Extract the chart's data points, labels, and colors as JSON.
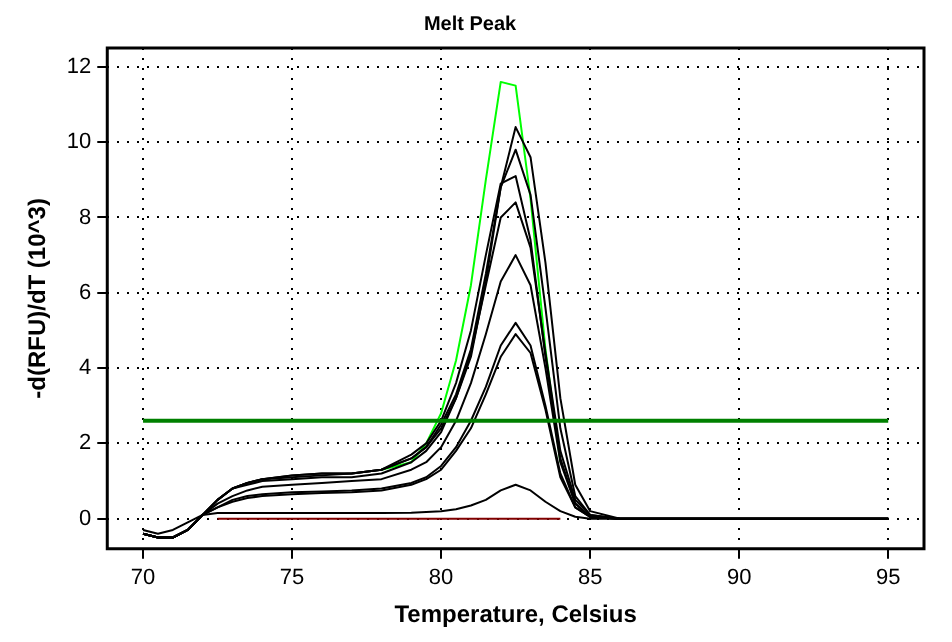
{
  "chart_data": {
    "type": "line",
    "title": "Melt Peak",
    "xlabel": "Temperature, Celsius",
    "ylabel": "-d(RFU)/dT (10^3)",
    "x": [
      70,
      70.5,
      71,
      71.5,
      72,
      72.5,
      73,
      73.5,
      74,
      75,
      76,
      77,
      78,
      79,
      79.5,
      80,
      80.5,
      81,
      81.5,
      82,
      82.5,
      83,
      83.5,
      84,
      84.5,
      85,
      86,
      90,
      95
    ],
    "xlim": [
      68.8,
      96.2
    ],
    "xticks": [
      70,
      75,
      80,
      85,
      90,
      95
    ],
    "ylim": [
      -0.8,
      12.5
    ],
    "yticks": [
      0,
      2,
      4,
      6,
      8,
      10,
      12
    ],
    "grid": true,
    "legend": false,
    "marker": "none",
    "line_style": "solid",
    "ref_lines": [
      {
        "axis": "y",
        "value": 2.6,
        "color": "#008000"
      }
    ],
    "series": [
      {
        "color": "#000000",
        "values": [
          -0.4,
          -0.5,
          -0.5,
          -0.3,
          0.1,
          0.5,
          0.8,
          0.95,
          1.05,
          1.15,
          1.2,
          1.2,
          1.3,
          1.6,
          1.9,
          2.4,
          3.2,
          4.3,
          6.3,
          8.8,
          10.4,
          9.6,
          6.8,
          3.2,
          0.9,
          0.2,
          0,
          0,
          0
        ]
      },
      {
        "color": "#000000",
        "values": [
          -0.4,
          -0.5,
          -0.5,
          -0.3,
          0.1,
          0.5,
          0.8,
          0.95,
          1.05,
          1.15,
          1.2,
          1.2,
          1.3,
          1.6,
          1.9,
          2.5,
          3.3,
          4.5,
          6.5,
          8.8,
          9.8,
          8.6,
          5.6,
          2.4,
          0.6,
          0.1,
          0,
          0,
          0
        ]
      },
      {
        "color": "#000000",
        "values": [
          -0.4,
          -0.5,
          -0.5,
          -0.3,
          0.1,
          0.5,
          0.8,
          0.95,
          1.05,
          1.1,
          1.15,
          1.2,
          1.3,
          1.7,
          2.0,
          2.6,
          3.6,
          5.0,
          7.0,
          8.9,
          9.1,
          7.4,
          4.3,
          1.6,
          0.4,
          0.05,
          0,
          0,
          0
        ]
      },
      {
        "color": "#000000",
        "values": [
          -0.4,
          -0.5,
          -0.5,
          -0.3,
          0.1,
          0.5,
          0.8,
          0.9,
          1.0,
          1.05,
          1.1,
          1.1,
          1.2,
          1.5,
          1.8,
          2.3,
          3.2,
          4.4,
          6.2,
          8.0,
          8.4,
          7.2,
          4.4,
          1.8,
          0.5,
          0.1,
          0,
          0,
          0
        ]
      },
      {
        "color": "#000000",
        "values": [
          -0.4,
          -0.5,
          -0.5,
          -0.3,
          0.1,
          0.4,
          0.6,
          0.75,
          0.85,
          0.9,
          0.95,
          1.0,
          1.05,
          1.3,
          1.5,
          1.9,
          2.6,
          3.6,
          4.9,
          6.3,
          7.0,
          6.2,
          4.0,
          1.5,
          0.4,
          0.05,
          0,
          0,
          0
        ]
      },
      {
        "color": "#000000",
        "values": [
          -0.4,
          -0.5,
          -0.5,
          -0.3,
          0.1,
          0.3,
          0.5,
          0.6,
          0.65,
          0.7,
          0.72,
          0.75,
          0.8,
          0.95,
          1.1,
          1.4,
          1.9,
          2.6,
          3.5,
          4.6,
          5.2,
          4.6,
          3.0,
          1.2,
          0.3,
          0.05,
          0,
          0,
          0
        ]
      },
      {
        "color": "#000000",
        "values": [
          -0.4,
          -0.5,
          -0.5,
          -0.3,
          0.1,
          0.3,
          0.45,
          0.55,
          0.6,
          0.65,
          0.68,
          0.7,
          0.75,
          0.9,
          1.05,
          1.3,
          1.8,
          2.4,
          3.3,
          4.3,
          4.9,
          4.4,
          2.9,
          1.1,
          0.3,
          0.05,
          0,
          0,
          0
        ]
      },
      {
        "color": "#000000",
        "values": [
          -0.3,
          -0.4,
          -0.3,
          -0.1,
          0.1,
          0.15,
          0.15,
          0.15,
          0.15,
          0.15,
          0.15,
          0.15,
          0.15,
          0.16,
          0.18,
          0.2,
          0.25,
          0.35,
          0.5,
          0.75,
          0.9,
          0.75,
          0.45,
          0.2,
          0.05,
          0,
          0,
          0,
          0
        ]
      },
      {
        "color": "#00ff00",
        "values": [
          null,
          null,
          null,
          null,
          null,
          null,
          null,
          null,
          null,
          null,
          null,
          null,
          1.3,
          1.5,
          2.0,
          2.8,
          4.2,
          6.2,
          9.0,
          11.6,
          11.5,
          8.5,
          4.5,
          1.5,
          null,
          null,
          null,
          null,
          null
        ]
      },
      {
        "color": "#800000",
        "values": [
          null,
          null,
          null,
          null,
          null,
          0,
          0,
          0,
          0,
          0,
          0,
          0,
          0,
          0,
          0,
          0,
          0,
          0,
          0,
          0,
          0,
          0,
          0,
          0,
          null,
          null,
          null,
          null,
          null
        ]
      }
    ]
  }
}
